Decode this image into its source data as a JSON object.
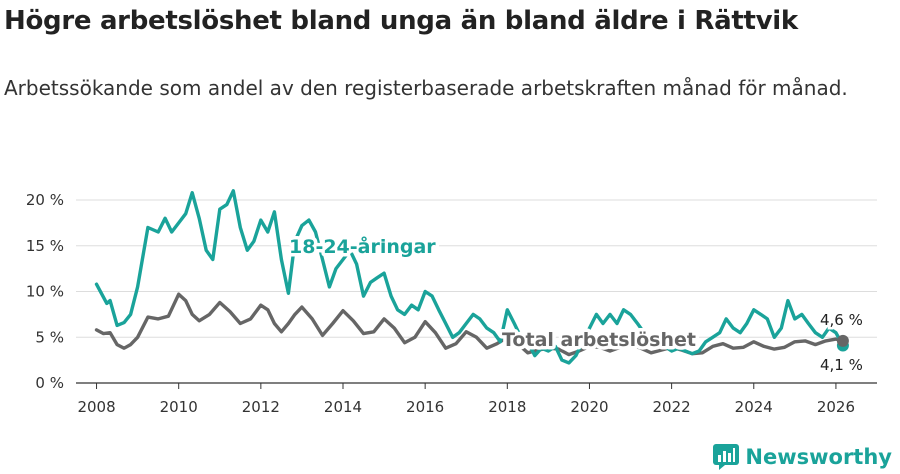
{
  "header": {
    "title": "Högre arbetslöshet bland unga än bland äldre i Rättvik",
    "subtitle": "Arbetssökande som andel av den registerbaserade arbetskraften månad för månad."
  },
  "brand": {
    "name": "Newsworthy",
    "icon": "bar-chart-logo-icon",
    "color": "#1aa39a"
  },
  "chart_data": {
    "type": "line",
    "title": "Högre arbetslöshet bland unga än bland äldre i Rättvik",
    "xlabel": "",
    "ylabel": "",
    "xlim": [
      2007.5,
      2027.0
    ],
    "ylim": [
      0,
      22
    ],
    "y_ticks": [
      0,
      5,
      10,
      15,
      20
    ],
    "y_tick_labels": [
      "0 %",
      "5 %",
      "10 %",
      "15 %",
      "20 %"
    ],
    "x_ticks": [
      2008,
      2010,
      2012,
      2014,
      2016,
      2018,
      2020,
      2022,
      2024,
      2026
    ],
    "x_tick_labels": [
      "2008",
      "2010",
      "2012",
      "2014",
      "2016",
      "2018",
      "2020",
      "2022",
      "2024",
      "2026"
    ],
    "grid": true,
    "series": [
      {
        "name": "18-24-åringar",
        "label": "18-24-åringar",
        "color": "#1aa39a",
        "last_value_label": "4,1 %",
        "x": [
          2008.0,
          2008.25,
          2008.33,
          2008.5,
          2008.67,
          2008.83,
          2009.0,
          2009.25,
          2009.5,
          2009.67,
          2009.83,
          2010.0,
          2010.17,
          2010.33,
          2010.5,
          2010.67,
          2010.83,
          2011.0,
          2011.17,
          2011.33,
          2011.5,
          2011.67,
          2011.83,
          2012.0,
          2012.17,
          2012.33,
          2012.5,
          2012.67,
          2012.83,
          2013.0,
          2013.17,
          2013.33,
          2013.5,
          2013.67,
          2013.83,
          2014.0,
          2014.17,
          2014.33,
          2014.5,
          2014.67,
          2014.83,
          2015.0,
          2015.17,
          2015.33,
          2015.5,
          2015.67,
          2015.83,
          2016.0,
          2016.17,
          2016.33,
          2016.5,
          2016.67,
          2016.83,
          2017.0,
          2017.17,
          2017.33,
          2017.5,
          2017.67,
          2017.83,
          2018.0,
          2018.17,
          2018.33,
          2018.5,
          2018.67,
          2018.83,
          2019.0,
          2019.17,
          2019.33,
          2019.5,
          2019.67,
          2019.83,
          2020.0,
          2020.17,
          2020.33,
          2020.5,
          2020.67,
          2020.83,
          2021.0,
          2021.17,
          2021.33,
          2021.5,
          2021.67,
          2021.83,
          2022.0,
          2022.17,
          2022.33,
          2022.5,
          2022.67,
          2022.83,
          2023.0,
          2023.17,
          2023.33,
          2023.5,
          2023.67,
          2023.83,
          2024.0,
          2024.17,
          2024.33,
          2024.5,
          2024.67,
          2024.83,
          2025.0,
          2025.17,
          2025.33,
          2025.5,
          2025.67,
          2025.83,
          2026.0,
          2026.17
        ],
        "values": [
          10.8,
          8.7,
          9.0,
          6.3,
          6.6,
          7.5,
          10.5,
          17.0,
          16.5,
          18.0,
          16.5,
          17.5,
          18.5,
          20.8,
          18.0,
          14.5,
          13.5,
          19.0,
          19.5,
          21.0,
          17.0,
          14.5,
          15.5,
          17.8,
          16.5,
          18.7,
          13.5,
          9.8,
          15.5,
          17.2,
          17.8,
          16.5,
          13.5,
          10.5,
          12.5,
          13.5,
          14.5,
          13.0,
          9.5,
          11.0,
          11.5,
          12.0,
          9.5,
          8.0,
          7.5,
          8.5,
          8.0,
          10.0,
          9.5,
          8.0,
          6.5,
          5.0,
          5.5,
          6.5,
          7.5,
          7.0,
          6.0,
          5.5,
          4.5,
          8.0,
          6.5,
          5.0,
          4.5,
          3.0,
          3.8,
          3.5,
          4.0,
          2.5,
          2.2,
          3.0,
          4.5,
          6.0,
          7.5,
          6.5,
          7.5,
          6.5,
          8.0,
          7.5,
          6.5,
          5.5,
          5.0,
          4.5,
          4.0,
          3.5,
          3.8,
          3.5,
          3.2,
          3.5,
          4.5,
          5.0,
          5.5,
          7.0,
          6.0,
          5.5,
          6.5,
          8.0,
          7.5,
          7.0,
          5.0,
          6.0,
          9.0,
          7.0,
          7.5,
          6.5,
          5.5,
          5.0,
          6.0,
          5.5,
          4.1
        ]
      },
      {
        "name": "Total arbetslöshet",
        "label": "Total arbetslöshet",
        "color": "#666666",
        "last_value_label": "4,6 %",
        "x": [
          2008.0,
          2008.17,
          2008.33,
          2008.5,
          2008.67,
          2008.83,
          2009.0,
          2009.25,
          2009.5,
          2009.75,
          2010.0,
          2010.17,
          2010.33,
          2010.5,
          2010.75,
          2011.0,
          2011.25,
          2011.5,
          2011.75,
          2012.0,
          2012.17,
          2012.33,
          2012.5,
          2012.67,
          2012.83,
          2013.0,
          2013.25,
          2013.5,
          2013.75,
          2014.0,
          2014.25,
          2014.5,
          2014.75,
          2015.0,
          2015.25,
          2015.5,
          2015.75,
          2016.0,
          2016.25,
          2016.5,
          2016.75,
          2017.0,
          2017.25,
          2017.5,
          2017.75,
          2018.0,
          2018.25,
          2018.5,
          2018.75,
          2019.0,
          2019.25,
          2019.5,
          2019.75,
          2020.0,
          2020.25,
          2020.5,
          2020.75,
          2021.0,
          2021.25,
          2021.5,
          2021.75,
          2022.0,
          2022.25,
          2022.5,
          2022.75,
          2023.0,
          2023.25,
          2023.5,
          2023.75,
          2024.0,
          2024.25,
          2024.5,
          2024.75,
          2025.0,
          2025.25,
          2025.5,
          2025.75,
          2026.0,
          2026.17
        ],
        "values": [
          5.8,
          5.4,
          5.5,
          4.2,
          3.8,
          4.2,
          5.0,
          7.2,
          7.0,
          7.3,
          9.7,
          9.0,
          7.5,
          6.8,
          7.5,
          8.8,
          7.8,
          6.5,
          7.0,
          8.5,
          8.0,
          6.5,
          5.6,
          6.5,
          7.5,
          8.3,
          7.0,
          5.2,
          6.5,
          7.9,
          6.8,
          5.4,
          5.6,
          7.0,
          6.0,
          4.4,
          5.0,
          6.7,
          5.5,
          3.8,
          4.3,
          5.6,
          5.0,
          3.8,
          4.3,
          5.0,
          4.3,
          3.3,
          3.6,
          3.8,
          3.7,
          3.1,
          3.5,
          4.0,
          3.9,
          3.5,
          3.9,
          4.2,
          3.8,
          3.3,
          3.6,
          3.9,
          3.6,
          3.2,
          3.3,
          4.0,
          4.3,
          3.8,
          3.9,
          4.5,
          4.0,
          3.7,
          3.9,
          4.5,
          4.6,
          4.2,
          4.6,
          4.8,
          4.6
        ]
      }
    ]
  }
}
